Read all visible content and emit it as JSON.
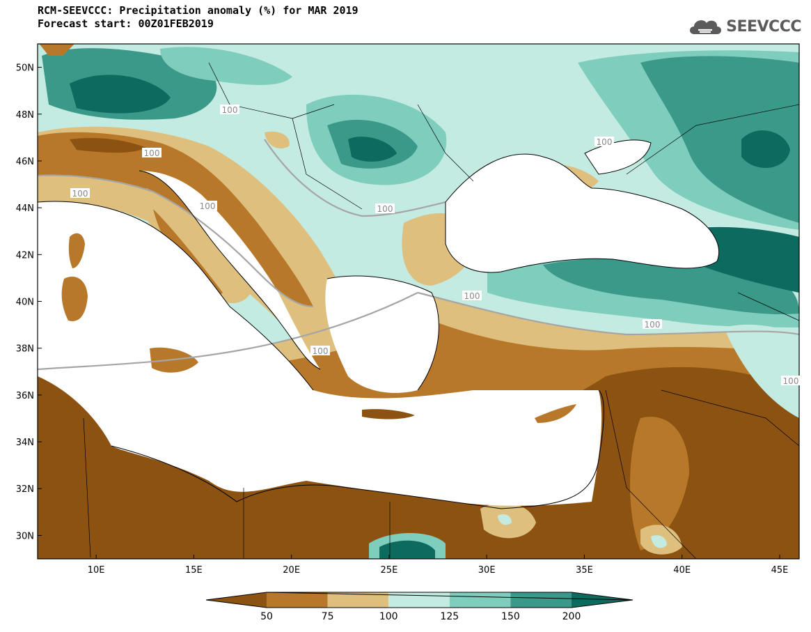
{
  "title": {
    "line1": "RCM-SEEVCCC: Precipitation anomaly (%) for MAR 2019",
    "line2": "Forecast start: 00Z01FEB2019"
  },
  "logo": {
    "text": "SEEVCCC",
    "icon": "cloud-logo-icon"
  },
  "axes": {
    "lat_labels": [
      "50N",
      "48N",
      "46N",
      "44N",
      "42N",
      "40N",
      "38N",
      "36N",
      "34N",
      "32N",
      "30N"
    ],
    "lon_labels": [
      "10E",
      "15E",
      "20E",
      "25E",
      "30E",
      "35E",
      "40E",
      "45E"
    ]
  },
  "map_extent": {
    "lon": [
      7,
      46
    ],
    "lat": [
      29,
      51
    ]
  },
  "contour_labels": [
    "100",
    "100",
    "100",
    "100",
    "100",
    "100",
    "100",
    "100",
    "100",
    "100"
  ],
  "colorbar": {
    "labels": [
      "50",
      "75",
      "100",
      "125",
      "150",
      "200"
    ],
    "colors": [
      "#8c5212",
      "#b8782a",
      "#dfbf7e",
      "#c4ebe1",
      "#7fcdbd",
      "#3a9988",
      "#0c6b5e"
    ]
  },
  "colors": {
    "sea": "#ffffff",
    "border": "#000000",
    "contour100": "#a5a5a5"
  }
}
